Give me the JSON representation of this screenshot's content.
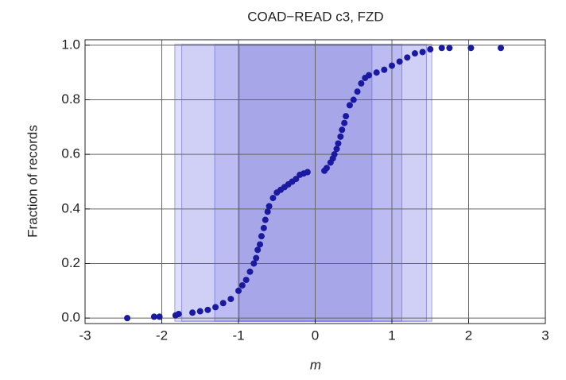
{
  "chart_data": {
    "type": "scatter",
    "title": "COAD−READ c3, FZD",
    "xlabel": "m",
    "ylabel": "Fraction of records",
    "color": "#1a1aa0",
    "intervals": [
      {
        "range": [
          -1.83,
          1.52
        ],
        "color": "rgba(110,110,230,0.22)"
      },
      {
        "range": [
          -1.74,
          1.45
        ],
        "color": "rgba(110,110,230,0.12)"
      },
      {
        "range": [
          -1.31,
          1.13
        ],
        "color": "rgba(110,110,230,0.2)"
      },
      {
        "range": [
          -0.99,
          0.74
        ],
        "color": "rgba(90,90,200,0.22)"
      }
    ],
    "x": [
      -2.45,
      -2.1,
      -2.03,
      -1.82,
      -1.78,
      -1.6,
      -1.5,
      -1.4,
      -1.3,
      -1.2,
      -1.1,
      -1.0,
      -0.95,
      -0.9,
      -0.85,
      -0.8,
      -0.77,
      -0.75,
      -0.72,
      -0.7,
      -0.67,
      -0.65,
      -0.62,
      -0.6,
      -0.55,
      -0.5,
      -0.45,
      -0.4,
      -0.35,
      -0.3,
      -0.25,
      -0.2,
      -0.15,
      -0.1,
      0.12,
      0.15,
      0.2,
      0.23,
      0.25,
      0.28,
      0.3,
      0.33,
      0.35,
      0.38,
      0.4,
      0.45,
      0.5,
      0.55,
      0.6,
      0.65,
      0.7,
      0.8,
      0.9,
      1.0,
      1.1,
      1.2,
      1.3,
      1.4,
      1.5,
      1.65,
      1.75,
      2.03,
      2.42
    ],
    "values": [
      0.0,
      0.005,
      0.005,
      0.01,
      0.015,
      0.02,
      0.025,
      0.03,
      0.04,
      0.055,
      0.07,
      0.1,
      0.12,
      0.14,
      0.17,
      0.2,
      0.22,
      0.25,
      0.27,
      0.3,
      0.33,
      0.36,
      0.39,
      0.41,
      0.44,
      0.46,
      0.47,
      0.48,
      0.49,
      0.5,
      0.51,
      0.525,
      0.53,
      0.535,
      0.54,
      0.55,
      0.57,
      0.585,
      0.6,
      0.62,
      0.64,
      0.665,
      0.69,
      0.715,
      0.74,
      0.78,
      0.8,
      0.83,
      0.86,
      0.88,
      0.89,
      0.9,
      0.91,
      0.925,
      0.94,
      0.955,
      0.97,
      0.975,
      0.985,
      0.99,
      0.99,
      0.99,
      0.99
    ],
    "xlim": [
      -3,
      3
    ],
    "ylim": [
      -0.02,
      1.02
    ],
    "xticks": [
      -3,
      -2,
      -1,
      0,
      1,
      2,
      3
    ],
    "yticks": [
      {
        "value": 0,
        "label": "0.0"
      },
      0.2,
      0.4,
      0.6,
      0.8,
      {
        "value": 1,
        "label": "1.0"
      }
    ],
    "grid": true
  }
}
